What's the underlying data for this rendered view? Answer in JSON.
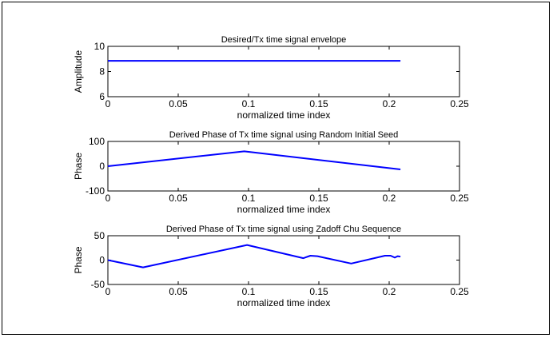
{
  "chart_data": [
    {
      "type": "line",
      "title": "Desired/Tx time signal envelope",
      "xlabel": "normalized time index",
      "ylabel": "Amplitude",
      "xlim": [
        0,
        0.25
      ],
      "ylim": [
        6,
        10
      ],
      "xticks": [
        "0",
        "0.05",
        "0.1",
        "0.15",
        "0.2",
        "0.25"
      ],
      "yticks": [
        "6",
        "8",
        "10"
      ],
      "grid": false,
      "series": [
        {
          "color": "#0000ff",
          "x": [
            0,
            0.208
          ],
          "y": [
            8.85,
            8.85
          ]
        }
      ]
    },
    {
      "type": "line",
      "title": "Derived Phase of Tx time signal using Random Initial Seed",
      "xlabel": "normalized time index",
      "ylabel": "Phase",
      "xlim": [
        0,
        0.25
      ],
      "ylim": [
        -100,
        100
      ],
      "xticks": [
        "0",
        "0.05",
        "0.1",
        "0.15",
        "0.2",
        "0.25"
      ],
      "yticks": [
        "-100",
        "0",
        "100"
      ],
      "grid": false,
      "series": [
        {
          "color": "#0000ff",
          "x": [
            0,
            0.097,
            0.208
          ],
          "y": [
            0,
            60,
            -13
          ]
        }
      ]
    },
    {
      "type": "line",
      "title": "Derived Phase of Tx time signal using Zadoff Chu Sequence",
      "xlabel": "normalized time index",
      "ylabel": "Phase",
      "xlim": [
        0,
        0.25
      ],
      "ylim": [
        -50,
        50
      ],
      "xticks": [
        "0",
        "0.05",
        "0.1",
        "0.15",
        "0.2",
        "0.25"
      ],
      "yticks": [
        "-50",
        "0",
        "50"
      ],
      "grid": false,
      "series": [
        {
          "color": "#0000ff",
          "x": [
            0,
            0.025,
            0.099,
            0.139,
            0.144,
            0.149,
            0.173,
            0.197,
            0.201,
            0.204,
            0.206,
            0.208
          ],
          "y": [
            0,
            -15,
            31,
            4,
            9,
            8,
            -7,
            9,
            9,
            5,
            8,
            7
          ]
        }
      ]
    }
  ]
}
